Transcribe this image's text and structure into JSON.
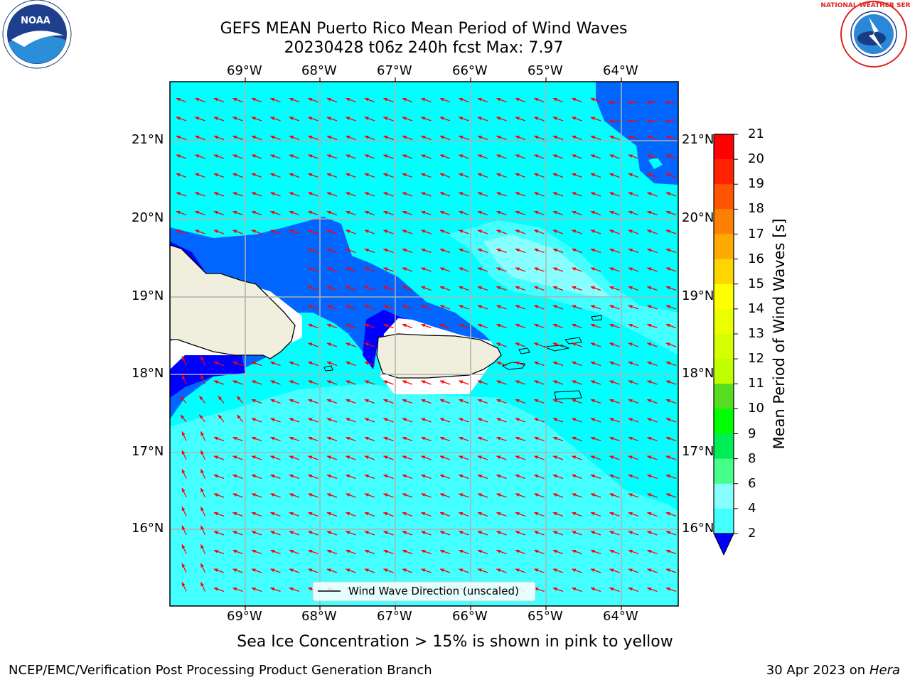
{
  "header": {
    "title_line1": "GEFS MEAN Puerto Rico Mean Period of Wind Waves",
    "title_line2": "20230428 t06z 240h fcst   Max: 7.97"
  },
  "logos": {
    "left": "noaa-logo",
    "left_text": "NOAA",
    "right": "nws-logo",
    "right_text": "NATIONAL WEATHER SERVICE"
  },
  "map": {
    "lon_labels": [
      "69°W",
      "68°W",
      "67°W",
      "66°W",
      "65°W",
      "64°W"
    ],
    "lat_labels": [
      "21°N",
      "20°N",
      "19°N",
      "18°N",
      "17°N",
      "16°N"
    ],
    "legend_label": "Wind Wave Direction (unscaled)",
    "colors": {
      "ocean_main": "#00ffff",
      "ocean_light": "#44ffff",
      "ocean_lighter": "#88ffff",
      "deep_blue": "#0066ff",
      "darker_blue": "#0000ff",
      "land": "#f0eedc",
      "arrow": "#ff0000",
      "grid": "#b0b0b0"
    }
  },
  "colorbar": {
    "title": "Mean Period of Wind Waves [s]",
    "tick_labels": [
      "21",
      "20",
      "19",
      "18",
      "17",
      "16",
      "15",
      "14",
      "13",
      "12",
      "11",
      "10",
      "9",
      "8",
      "6",
      "4",
      "2"
    ],
    "colors": [
      "#ff0000",
      "#ff2200",
      "#ff5500",
      "#ff8000",
      "#ffaa00",
      "#ffd500",
      "#ffff00",
      "#eaff00",
      "#d5ff00",
      "#bfff00",
      "#55dd22",
      "#00ff00",
      "#00ee55",
      "#44ff88",
      "#88ffff",
      "#44ffff",
      "#00ffff",
      "#0066ff",
      "#0000ff"
    ]
  },
  "subnote": "Sea Ice Concentration > 15% is shown in pink to yellow",
  "footer": {
    "left": "NCEP/EMC/Verification Post Processing Product Generation Branch",
    "right_prefix": "30 Apr 2023 on ",
    "right_italic": "Hera"
  }
}
